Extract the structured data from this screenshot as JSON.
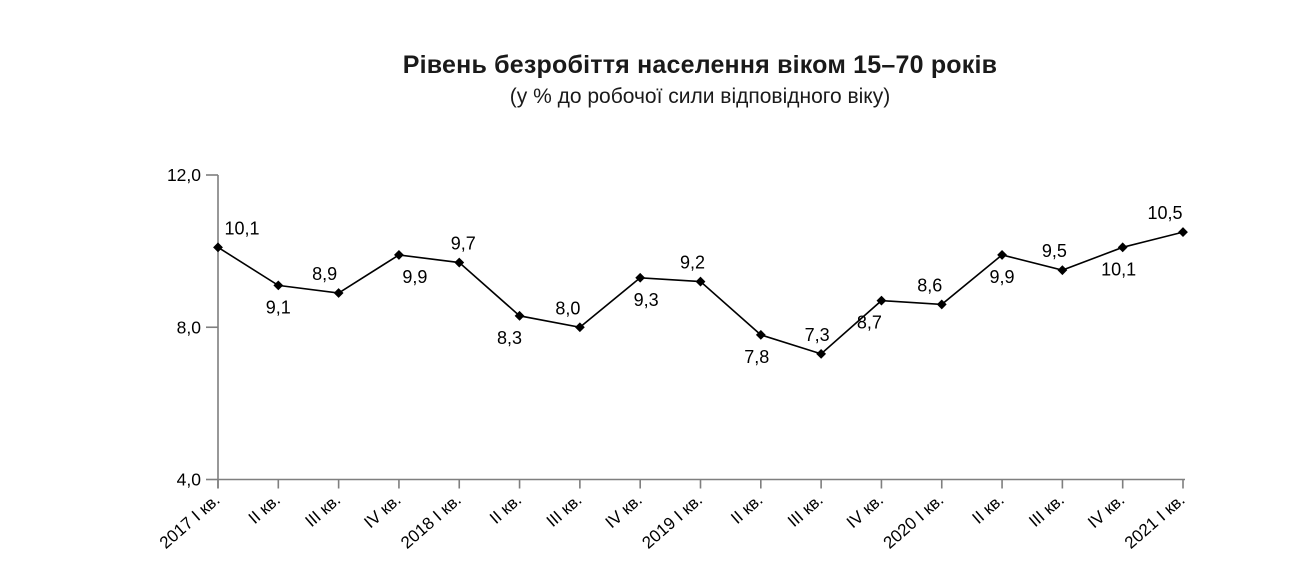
{
  "title": "Рівень безробіття населення віком 15–70 років",
  "subtitle": "(у % до робочої сили відповідного віку)",
  "chart_data": {
    "type": "line",
    "categories": [
      "2017 І кв.",
      "ІІ кв.",
      "ІІІ кв.",
      "IV кв.",
      "2018 І кв.",
      "ІІ кв.",
      "ІІІ кв.",
      "IV кв.",
      "2019 І кв.",
      "ІІ кв.",
      "ІІІ кв.",
      "IV кв.",
      "2020 І кв.",
      "ІІ кв.",
      "ІІІ кв.",
      "IV кв.",
      "2021 І кв."
    ],
    "values": [
      10.1,
      9.1,
      8.9,
      9.9,
      9.7,
      8.3,
      8.0,
      9.3,
      9.2,
      7.8,
      7.3,
      8.7,
      8.6,
      9.9,
      9.5,
      10.1,
      10.5
    ],
    "point_labels": [
      "10,1",
      "9,1",
      "8,9",
      "9,9",
      "9,7",
      "8,3",
      "8,0",
      "9,3",
      "9,2",
      "7,8",
      "7,3",
      "8,7",
      "8,6",
      "9,9",
      "9,5",
      "10,1",
      "10,5"
    ],
    "label_positions": [
      "above",
      "below",
      "above",
      "below",
      "above",
      "below",
      "above",
      "below",
      "above",
      "below",
      "above",
      "below",
      "above",
      "below",
      "above",
      "below",
      "above"
    ],
    "y_ticks": [
      {
        "value": 12,
        "label": "12,0"
      },
      {
        "value": 8,
        "label": "8,0"
      },
      {
        "value": 4,
        "label": "4,0"
      }
    ],
    "ylim": [
      4,
      12
    ],
    "title": "Рівень безробіття населення віком 15–70 років",
    "xlabel": "",
    "ylabel": "",
    "grid": false,
    "legend": false,
    "marker": "diamond",
    "colors": {
      "line": "#000000",
      "marker": "#000000",
      "axis": "#7f7f7f",
      "text": "#000000"
    }
  }
}
